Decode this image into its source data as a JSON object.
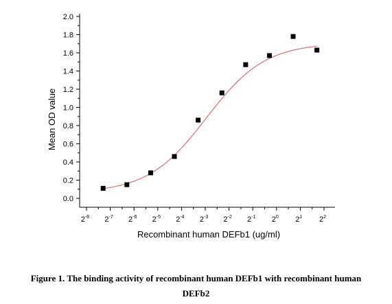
{
  "chart_data": {
    "type": "scatter",
    "xlabel": "Recombinant human DEFb1 (ug/ml)",
    "ylabel": "Mean OD value",
    "x_scale": "log2",
    "xlim_log2": [
      -8,
      2
    ],
    "ylim": [
      0,
      2.0
    ],
    "x_tick_exponents": [
      -8,
      -7,
      -6,
      -5,
      -4,
      -3,
      -2,
      -1,
      0,
      1,
      2
    ],
    "x_tick_base": "2",
    "y_ticks": [
      "0.0",
      "0.2",
      "0.4",
      "0.6",
      "0.8",
      "1.0",
      "1.2",
      "1.4",
      "1.6",
      "1.8",
      "2.0"
    ],
    "grid": false,
    "marker": "square",
    "marker_color": "#000000",
    "fit_line_color": "#e0505a",
    "points": [
      {
        "log2_x": -7.3,
        "y": 0.11
      },
      {
        "log2_x": -6.3,
        "y": 0.15
      },
      {
        "log2_x": -5.3,
        "y": 0.28
      },
      {
        "log2_x": -4.3,
        "y": 0.46
      },
      {
        "log2_x": -3.3,
        "y": 0.86
      },
      {
        "log2_x": -2.3,
        "y": 1.16
      },
      {
        "log2_x": -1.3,
        "y": 1.47
      },
      {
        "log2_x": -0.3,
        "y": 1.57
      },
      {
        "log2_x": 0.7,
        "y": 1.78
      },
      {
        "log2_x": 1.7,
        "y": 1.63
      }
    ],
    "fit": {
      "bottom": 0.06,
      "top": 1.71,
      "log2_ec50": -2.95,
      "slope": 0.78
    }
  },
  "caption": {
    "line1": "Figure 1. The binding activity of recombinant human DEFb1 with recombinant human",
    "line2": "DEFb2"
  }
}
